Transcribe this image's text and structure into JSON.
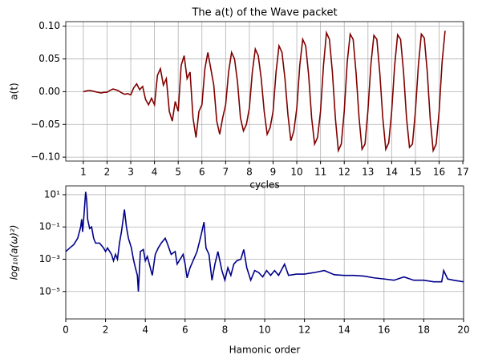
{
  "chart_data": [
    {
      "type": "line",
      "title": "The a(t) of the Wave packet",
      "xlabel": "cycles",
      "ylabel": "a(t)",
      "xlim": [
        0.26,
        17.03
      ],
      "ylim": [
        -0.106,
        0.107
      ],
      "xticks": [
        1,
        2,
        3,
        4,
        5,
        6,
        7,
        8,
        9,
        10,
        11,
        12,
        13,
        14,
        15,
        16,
        17
      ],
      "yticks": [
        {
          "value": -0.1,
          "label": "−0.10"
        },
        {
          "value": -0.05,
          "label": "−0.05"
        },
        {
          "value": 0,
          "label": "0.00"
        },
        {
          "value": 0.05,
          "label": "0.05"
        },
        {
          "value": 0.1,
          "label": "0.10"
        }
      ],
      "grid": true,
      "series": [
        {
          "color": "#800000",
          "x": [
            1,
            1.125,
            1.25,
            1.375,
            1.5,
            1.625,
            1.75,
            1.875,
            2,
            2.125,
            2.25,
            2.375,
            2.5,
            2.625,
            2.75,
            2.875,
            3,
            3.125,
            3.25,
            3.375,
            3.5,
            3.625,
            3.75,
            3.875,
            4,
            4.125,
            4.25,
            4.375,
            4.5,
            4.625,
            4.75,
            4.875,
            5,
            5.125,
            5.25,
            5.375,
            5.5,
            5.625,
            5.75,
            5.875,
            6,
            6.125,
            6.25,
            6.375,
            6.5,
            6.625,
            6.75,
            6.875,
            7,
            7.125,
            7.25,
            7.375,
            7.5,
            7.625,
            7.75,
            7.875,
            8,
            8.125,
            8.25,
            8.375,
            8.5,
            8.625,
            8.75,
            8.875,
            9,
            9.125,
            9.25,
            9.375,
            9.5,
            9.625,
            9.75,
            9.875,
            10,
            10.125,
            10.25,
            10.375,
            10.5,
            10.625,
            10.75,
            10.875,
            11,
            11.125,
            11.25,
            11.375,
            11.5,
            11.625,
            11.75,
            11.875,
            12,
            12.125,
            12.25,
            12.375,
            12.5,
            12.625,
            12.75,
            12.875,
            13,
            13.125,
            13.25,
            13.375,
            13.5,
            13.625,
            13.75,
            13.875,
            14,
            14.125,
            14.25,
            14.375,
            14.5,
            14.625,
            14.75,
            14.875,
            15,
            15.125,
            15.25,
            15.375,
            15.5,
            15.625,
            15.75,
            15.875,
            16,
            16.125,
            16.25
          ],
          "values": [
            0,
            0.001,
            0.002,
            0.001,
            0,
            -0.001,
            -0.002,
            -0.001,
            -0.001,
            0.002,
            0.004,
            0.003,
            0.001,
            -0.002,
            -0.004,
            -0.003,
            -0.005,
            0.006,
            0.012,
            0.003,
            0.008,
            -0.012,
            -0.02,
            -0.01,
            -0.02,
            0.025,
            0.035,
            0.01,
            0.02,
            -0.03,
            -0.045,
            -0.015,
            -0.03,
            0.04,
            0.055,
            0.02,
            0.03,
            -0.04,
            -0.07,
            -0.03,
            -0.02,
            0.035,
            0.06,
            0.035,
            0.01,
            -0.045,
            -0.065,
            -0.04,
            -0.02,
            0.03,
            0.06,
            0.05,
            0.015,
            -0.04,
            -0.06,
            -0.05,
            -0.025,
            0.03,
            0.065,
            0.055,
            0.02,
            -0.03,
            -0.065,
            -0.055,
            -0.03,
            0.03,
            0.07,
            0.06,
            0.02,
            -0.035,
            -0.075,
            -0.06,
            -0.025,
            0.04,
            0.08,
            0.07,
            0.025,
            -0.04,
            -0.08,
            -0.07,
            -0.03,
            0.04,
            0.09,
            0.08,
            0.03,
            -0.04,
            -0.09,
            -0.08,
            -0.03,
            0.045,
            0.088,
            0.08,
            0.028,
            -0.04,
            -0.088,
            -0.08,
            -0.028,
            0.042,
            0.086,
            0.08,
            0.028,
            -0.04,
            -0.088,
            -0.078,
            -0.03,
            0.04,
            0.087,
            0.08,
            0.03,
            -0.04,
            -0.085,
            -0.08,
            -0.03,
            0.04,
            0.088,
            0.082,
            0.03,
            -0.042,
            -0.09,
            -0.08,
            -0.03,
            0.045,
            0.093
          ]
        }
      ]
    },
    {
      "type": "line",
      "xlabel": "Hamonic order",
      "ylabel": "log₁₀(a(ω)²)",
      "log_y": true,
      "xlim": [
        0,
        20
      ],
      "ylim": [
        2e-07,
        35
      ],
      "xticks": [
        0,
        2,
        4,
        6,
        8,
        10,
        12,
        14,
        16,
        18,
        20
      ],
      "yticks": [
        {
          "value": 1e-05,
          "label": "10⁻⁵"
        },
        {
          "value": 0.001,
          "label": "10⁻³"
        },
        {
          "value": 0.1,
          "label": "10⁻¹"
        },
        {
          "value": 10,
          "label": "10¹"
        }
      ],
      "grid": true,
      "series": [
        {
          "color": "#00008b",
          "x": [
            0,
            0.2,
            0.4,
            0.6,
            0.75,
            0.8,
            0.85,
            0.9,
            1.0,
            1.05,
            1.1,
            1.2,
            1.3,
            1.4,
            1.5,
            1.7,
            1.9,
            2.0,
            2.1,
            2.3,
            2.4,
            2.5,
            2.6,
            2.7,
            2.8,
            2.95,
            3.05,
            3.15,
            3.3,
            3.4,
            3.5,
            3.6,
            3.65,
            3.75,
            3.9,
            4.0,
            4.1,
            4.25,
            4.35,
            4.5,
            4.65,
            4.8,
            5.0,
            5.1,
            5.3,
            5.5,
            5.6,
            5.75,
            5.9,
            6.0,
            6.1,
            6.25,
            6.4,
            6.6,
            6.8,
            6.95,
            7.05,
            7.2,
            7.35,
            7.5,
            7.65,
            7.85,
            8.0,
            8.15,
            8.3,
            8.45,
            8.6,
            8.8,
            8.95,
            9.1,
            9.3,
            9.5,
            9.7,
            9.9,
            10.1,
            10.3,
            10.5,
            10.7,
            11.0,
            11.2,
            11.6,
            12.0,
            12.5,
            13.0,
            13.5,
            14.0,
            14.5,
            15.0,
            15.5,
            16.0,
            16.5,
            17.0,
            17.5,
            18.0,
            18.5,
            18.9,
            19.0,
            19.2,
            19.5,
            20.0
          ],
          "values": [
            0.003,
            0.005,
            0.008,
            0.02,
            0.1,
            0.3,
            0.05,
            0.3,
            15,
            5,
            0.3,
            0.08,
            0.1,
            0.02,
            0.01,
            0.01,
            0.005,
            0.003,
            0.005,
            0.002,
            0.0008,
            0.002,
            0.001,
            0.01,
            0.05,
            1.2,
            0.1,
            0.02,
            0.005,
            0.001,
            0.0003,
            0.0001,
            1e-05,
            0.003,
            0.004,
            0.0008,
            0.0015,
            0.0003,
            0.0001,
            0.002,
            0.005,
            0.01,
            0.02,
            0.01,
            0.002,
            0.003,
            0.0005,
            0.001,
            0.002,
            0.0005,
            7e-05,
            0.0003,
            0.0008,
            0.003,
            0.03,
            0.2,
            0.005,
            0.002,
            5e-05,
            0.0005,
            0.003,
            0.0002,
            5e-05,
            0.0003,
            0.0001,
            0.0005,
            0.0008,
            0.001,
            0.004,
            0.0003,
            5e-05,
            0.0002,
            0.00015,
            8e-05,
            0.0002,
            0.0001,
            0.0002,
            0.0001,
            0.0005,
            0.0001,
            0.00012,
            0.00012,
            0.00015,
            0.0002,
            0.00011,
            0.0001,
            0.0001,
            9e-05,
            7e-05,
            6e-05,
            5e-05,
            8e-05,
            5e-05,
            5e-05,
            4e-05,
            4e-05,
            0.0002,
            6e-05,
            5e-05,
            4e-05
          ]
        }
      ]
    }
  ]
}
